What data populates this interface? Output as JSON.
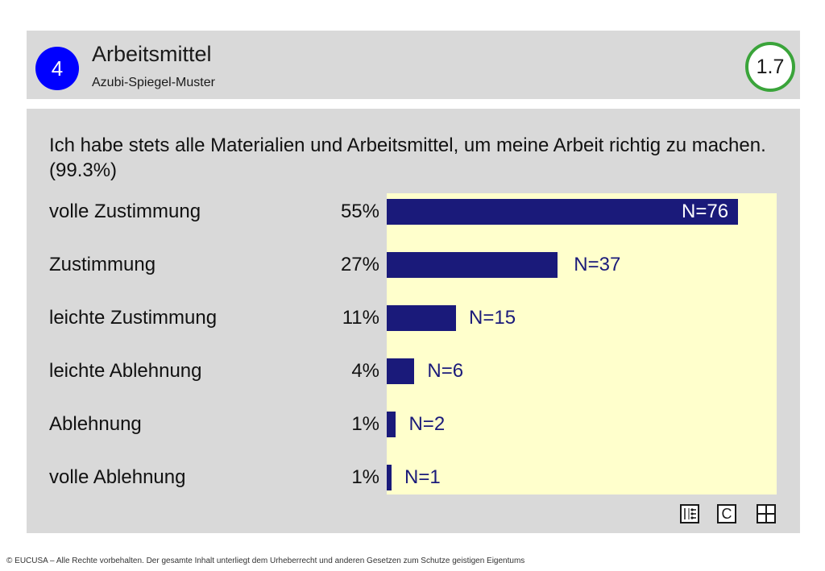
{
  "header": {
    "section_number": "4",
    "title": "Arbeitsmittel",
    "subtitle": "Azubi-Spiegel-Muster",
    "page_number": "1.7"
  },
  "question": "Ich habe stets alle Materialien und Arbeitsmittel, um meine Arbeit richtig zu machen. (99.3%)",
  "chart_data": {
    "type": "bar",
    "orientation": "horizontal",
    "categories": [
      "volle Zustimmung",
      "Zustimmung",
      "leichte Zustimmung",
      "leichte Ablehnung",
      "Ablehnung",
      "volle Ablehnung"
    ],
    "percent_labels": [
      "55%",
      "27%",
      "11%",
      "4%",
      "1%",
      "1%"
    ],
    "values": [
      76,
      37,
      15,
      6,
      2,
      1
    ],
    "value_labels": [
      "N=76",
      "N=37",
      "N=15",
      "N=6",
      "N=2",
      "N=1"
    ],
    "colors": {
      "bar": "#1a1a7a",
      "plot_background": "#ffffcc"
    }
  },
  "icons": [
    "chart-list-icon",
    "copyright-c-icon",
    "grid-icon"
  ],
  "icon_text": {
    "c": "C"
  },
  "footer": "© EUCUSA – Alle Rechte vorbehalten. Der gesamte Inhalt unterliegt dem Urheberrecht und anderen Gesetzen zum Schutze geistigen Eigentums"
}
